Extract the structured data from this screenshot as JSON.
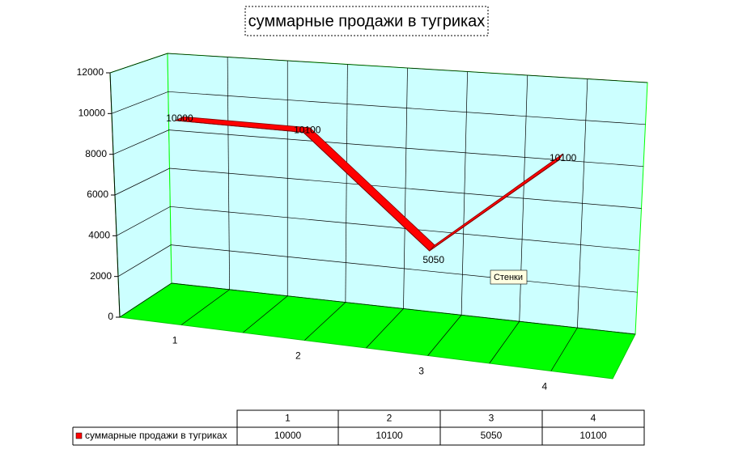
{
  "chart_data": {
    "type": "line",
    "title": "суммарные продажи в тугриках",
    "categories": [
      "1",
      "2",
      "3",
      "4"
    ],
    "series": [
      {
        "name": "суммарные продажи в тугриках",
        "color": "#ff0000",
        "values": [
          10000,
          10100,
          5050,
          10100
        ]
      }
    ],
    "ylim": [
      0,
      12000
    ],
    "yticks": [
      0,
      2000,
      4000,
      6000,
      8000,
      10000,
      12000
    ],
    "grid": true,
    "wall_color": "#ccffff",
    "floor_color": "#00ff00",
    "tooltip": "Стенки"
  }
}
